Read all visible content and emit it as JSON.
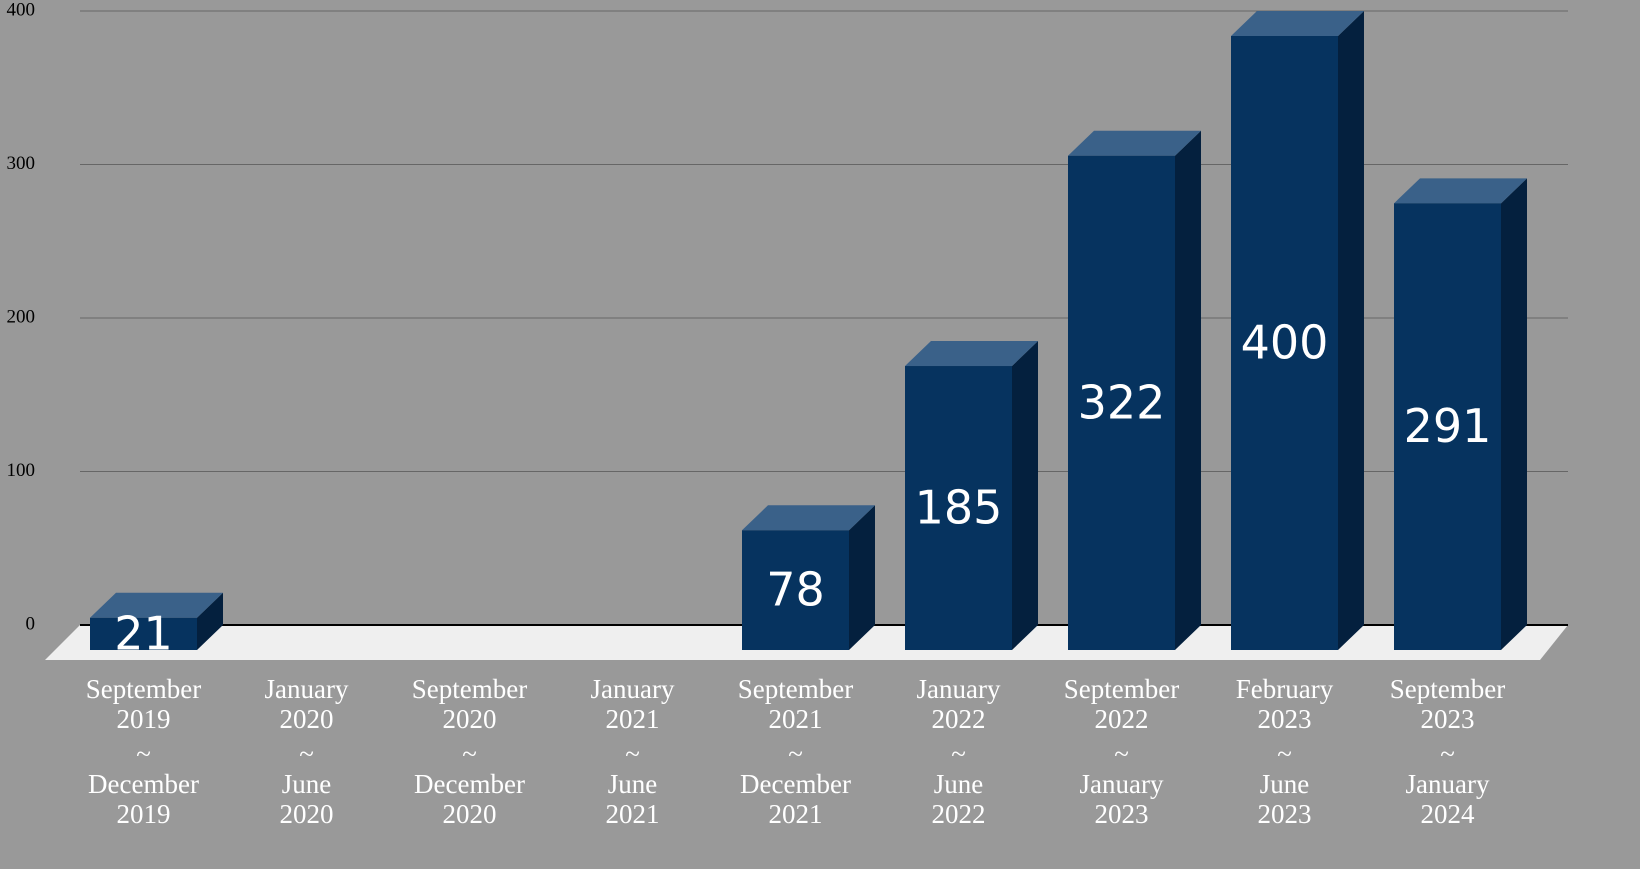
{
  "chart_data": {
    "type": "bar",
    "categories": [
      [
        "September",
        "2019",
        "~",
        "December",
        "2019"
      ],
      [
        "January",
        "2020",
        "~",
        "June",
        "2020"
      ],
      [
        "September",
        "2020",
        "~",
        "December",
        "2020"
      ],
      [
        "January",
        "2021",
        "~",
        "June",
        "2021"
      ],
      [
        "September",
        "2021",
        "~",
        "December",
        "2021"
      ],
      [
        "January",
        "2022",
        "~",
        "June",
        "2022"
      ],
      [
        "September",
        "2022",
        "~",
        "January",
        "2023"
      ],
      [
        "February",
        "2023",
        "~",
        "June",
        "2023"
      ],
      [
        "September",
        "2023",
        "~",
        "January",
        "2024"
      ]
    ],
    "values": [
      21,
      null,
      null,
      null,
      78,
      185,
      322,
      400,
      291
    ],
    "color": "#06335f",
    "ylim": [
      0,
      400
    ],
    "yticks": [
      0,
      100,
      200,
      300,
      400
    ],
    "grid": true
  }
}
